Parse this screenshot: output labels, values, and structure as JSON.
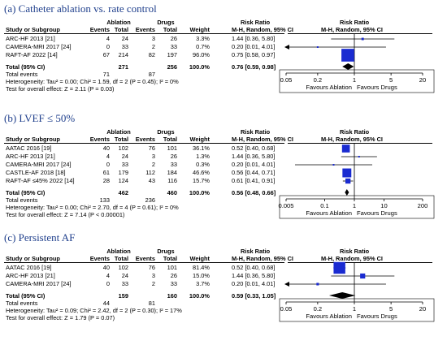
{
  "panels": [
    {
      "title": "(a) Catheter ablation vs. rate control",
      "group1": "Ablation",
      "group2": "Drugs",
      "col_study": "Study or Subgroup",
      "col_events": "Events",
      "col_total": "Total",
      "col_weight": "Weight",
      "col_rr_head": "Risk Ratio",
      "col_rr_sub": "M-H, Random, 95% CI",
      "plot_head": "Risk Ratio",
      "plot_sub": "M-H, Random, 95% CI",
      "studies": [
        {
          "name": "ARC-HF 2013 [21]",
          "e1": "4",
          "t1": "24",
          "e2": "3",
          "t2": "26",
          "weight": "3.3%",
          "rr": "1.44 [0.36, 5.80]"
        },
        {
          "name": "CAMERA-MRI 2017 [24]",
          "e1": "0",
          "t1": "33",
          "e2": "2",
          "t2": "33",
          "weight": "0.7%",
          "rr": "0.20 [0.01, 4.01]"
        },
        {
          "name": "RAFT-AF 2022 [14]",
          "e1": "67",
          "t1": "214",
          "e2": "82",
          "t2": "197",
          "weight": "96.0%",
          "rr": "0.75 [0.58, 0.97]"
        }
      ],
      "total_label": "Total (95% CI)",
      "total_t1": "271",
      "total_t2": "256",
      "total_weight": "100.0%",
      "total_rr": "0.76 [0.59, 0.98]",
      "events_label": "Total events",
      "events1": "71",
      "events2": "87",
      "heterogeneity": "Heterogeneity: Tau² = 0.00; Chi² = 1.59, df = 2 (P = 0.45); I² = 0%",
      "overall": "Test for overall effect: Z = 2.11 (P = 0.03)",
      "fav_left": "Favours Ablation",
      "fav_right": "Favours Drugs"
    },
    {
      "title": "(b) LVEF ≤ 50%",
      "group1": "Ablation",
      "group2": "Drugs",
      "col_study": "Study or Subgroup",
      "col_events": "Events",
      "col_total": "Total",
      "col_weight": "Weight",
      "col_rr_head": "Risk Ratio",
      "col_rr_sub": "M-H, Random, 95% CI",
      "plot_head": "Risk Ratio",
      "plot_sub": "M-H, Random, 95% CI",
      "studies": [
        {
          "name": "AATAC 2016 [19]",
          "e1": "40",
          "t1": "102",
          "e2": "76",
          "t2": "101",
          "weight": "36.1%",
          "rr": "0.52 [0.40, 0.68]"
        },
        {
          "name": "ARC-HF 2013 [21]",
          "e1": "4",
          "t1": "24",
          "e2": "3",
          "t2": "26",
          "weight": "1.3%",
          "rr": "1.44 [0.36, 5.80]"
        },
        {
          "name": "CAMERA-MRI 2017 [24]",
          "e1": "0",
          "t1": "33",
          "e2": "2",
          "t2": "33",
          "weight": "0.3%",
          "rr": "0.20 [0.01, 4.01]"
        },
        {
          "name": "CASTLE-AF 2018 [18]",
          "e1": "61",
          "t1": "179",
          "e2": "112",
          "t2": "184",
          "weight": "46.6%",
          "rr": "0.56 [0.44, 0.71]"
        },
        {
          "name": "RAFT-AF ≤45% 2022 [14]",
          "e1": "28",
          "t1": "124",
          "e2": "43",
          "t2": "116",
          "weight": "15.7%",
          "rr": "0.61 [0.41, 0.91]"
        }
      ],
      "total_label": "Total (95% CI)",
      "total_t1": "462",
      "total_t2": "460",
      "total_weight": "100.0%",
      "total_rr": "0.56 [0.48, 0.66]",
      "events_label": "Total events",
      "events1": "133",
      "events2": "236",
      "heterogeneity": "Heterogeneity: Tau² = 0.00; Chi² = 2.70, df = 4 (P = 0.61); I² = 0%",
      "overall": "Test for overall effect: Z = 7.14 (P < 0.00001)",
      "fav_left": "Favours Ablation",
      "fav_right": "Favours Drugs"
    },
    {
      "title": "(c) Persistent AF",
      "group1": "Ablation",
      "group2": "Drugs",
      "col_study": "Study or Subgroup",
      "col_events": "Events",
      "col_total": "Total",
      "col_weight": "Weight",
      "col_rr_head": "Risk Ratio",
      "col_rr_sub": "M-H, Random, 95% CI",
      "plot_head": "Risk Ratio",
      "plot_sub": "M-H, Random, 95% CI",
      "studies": [
        {
          "name": "AATAC 2016 [19]",
          "e1": "40",
          "t1": "102",
          "e2": "76",
          "t2": "101",
          "weight": "81.4%",
          "rr": "0.52 [0.40, 0.68]"
        },
        {
          "name": "ARC-HF 2013 [21]",
          "e1": "4",
          "t1": "24",
          "e2": "3",
          "t2": "26",
          "weight": "15.0%",
          "rr": "1.44 [0.36, 5.80]"
        },
        {
          "name": "CAMERA-MRI 2017 [24]",
          "e1": "0",
          "t1": "33",
          "e2": "2",
          "t2": "33",
          "weight": "3.7%",
          "rr": "0.20 [0.01, 4.01]"
        }
      ],
      "total_label": "Total (95% CI)",
      "total_t1": "159",
      "total_t2": "160",
      "total_weight": "100.0%",
      "total_rr": "0.59 [0.33, 1.05]",
      "events_label": "Total events",
      "events1": "44",
      "events2": "81",
      "heterogeneity": "Heterogeneity: Tau² = 0.09; Chi² = 2.42, df = 2 (P = 0.30); I² = 17%",
      "overall": "Test for overall effect: Z = 1.79 (P = 0.07)",
      "fav_left": "Favours Ablation",
      "fav_right": "Favours Drugs"
    }
  ],
  "colors": {
    "title": "#1f3f8c",
    "square": "#1a2bd1",
    "diamond": "#000000"
  },
  "chart_data": [
    {
      "type": "forest",
      "scale": "log",
      "xlim": [
        0.05,
        20
      ],
      "ticks": [
        "0.05",
        "0.2",
        "1",
        "5",
        "20"
      ],
      "reference": 1,
      "studies": [
        {
          "name": "ARC-HF 2013 [21]",
          "rr": 1.44,
          "lo": 0.36,
          "hi": 5.8,
          "weight": 3.3
        },
        {
          "name": "CAMERA-MRI 2017 [24]",
          "rr": 0.2,
          "lo": 0.01,
          "hi": 4.01,
          "weight": 0.7
        },
        {
          "name": "RAFT-AF 2022 [14]",
          "rr": 0.75,
          "lo": 0.58,
          "hi": 0.97,
          "weight": 96.0
        }
      ],
      "pooled": {
        "rr": 0.76,
        "lo": 0.59,
        "hi": 0.98
      }
    },
    {
      "type": "forest",
      "scale": "log",
      "xlim": [
        0.005,
        200
      ],
      "ticks": [
        "0.005",
        "0.1",
        "1",
        "10",
        "200"
      ],
      "reference": 1,
      "studies": [
        {
          "name": "AATAC 2016 [19]",
          "rr": 0.52,
          "lo": 0.4,
          "hi": 0.68,
          "weight": 36.1
        },
        {
          "name": "ARC-HF 2013 [21]",
          "rr": 1.44,
          "lo": 0.36,
          "hi": 5.8,
          "weight": 1.3
        },
        {
          "name": "CAMERA-MRI 2017 [24]",
          "rr": 0.2,
          "lo": 0.01,
          "hi": 4.01,
          "weight": 0.3
        },
        {
          "name": "CASTLE-AF 2018 [18]",
          "rr": 0.56,
          "lo": 0.44,
          "hi": 0.71,
          "weight": 46.6
        },
        {
          "name": "RAFT-AF ≤45% 2022 [14]",
          "rr": 0.61,
          "lo": 0.41,
          "hi": 0.91,
          "weight": 15.7
        }
      ],
      "pooled": {
        "rr": 0.56,
        "lo": 0.48,
        "hi": 0.66
      }
    },
    {
      "type": "forest",
      "scale": "log",
      "xlim": [
        0.05,
        20
      ],
      "ticks": [
        "0.05",
        "0.2",
        "1",
        "5",
        "20"
      ],
      "reference": 1,
      "studies": [
        {
          "name": "AATAC 2016 [19]",
          "rr": 0.52,
          "lo": 0.4,
          "hi": 0.68,
          "weight": 81.4
        },
        {
          "name": "ARC-HF 2013 [21]",
          "rr": 1.44,
          "lo": 0.36,
          "hi": 5.8,
          "weight": 15.0
        },
        {
          "name": "CAMERA-MRI 2017 [24]",
          "rr": 0.2,
          "lo": 0.01,
          "hi": 4.01,
          "weight": 3.7
        }
      ],
      "pooled": {
        "rr": 0.59,
        "lo": 0.33,
        "hi": 1.05
      }
    }
  ]
}
